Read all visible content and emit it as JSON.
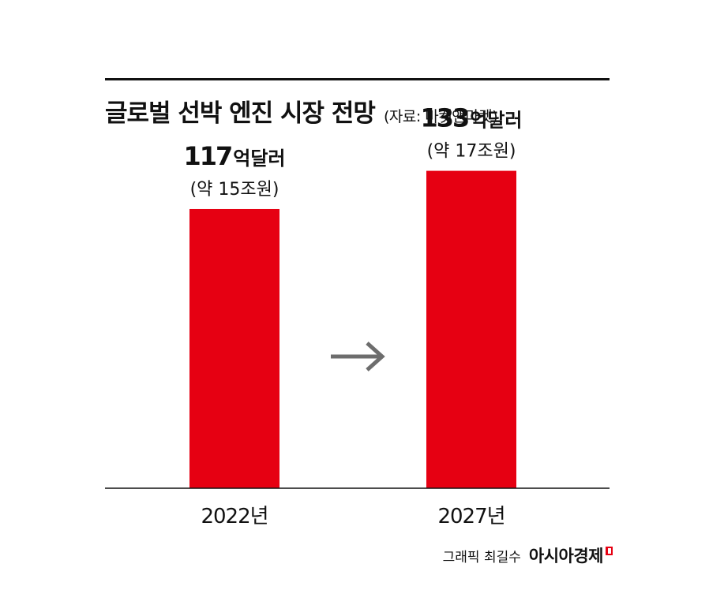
{
  "title": "글로벌 선박 엔진 시장 전망",
  "source": "(자료: 마켓앤마켓)",
  "chart_data": {
    "type": "bar",
    "categories": [
      "2022년",
      "2027년"
    ],
    "values": [
      117,
      133
    ],
    "unit": "억달러",
    "value_labels": [
      "117",
      "133"
    ],
    "sub_labels": [
      "(약 15조원)",
      "(약 17조원)"
    ],
    "ylim": [
      0,
      155
    ],
    "bar_color": "#e60012",
    "grid": false,
    "arrow_between_bars": "right-arrow"
  },
  "footer": {
    "credit": "그래픽 최길수",
    "brand": "아시아경제"
  },
  "colors": {
    "bar": "#e60012",
    "arrow": "#6d6d6d",
    "text": "#111111"
  }
}
